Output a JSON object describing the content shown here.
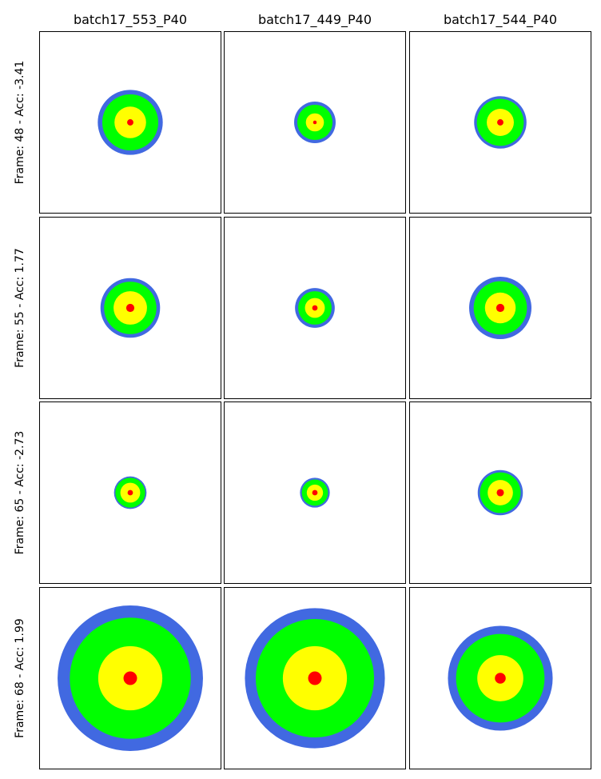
{
  "columns": [
    "batch17_553_P40",
    "batch17_449_P40",
    "batch17_544_P40"
  ],
  "rows": [
    {
      "label": "Frame: 48 - Acc: -3.41"
    },
    {
      "label": "Frame: 55 - Acc: 1.77"
    },
    {
      "label": "Frame: 65 - Acc: -2.73"
    },
    {
      "label": "Frame: 68 - Acc: 1.99"
    }
  ],
  "colors": {
    "outer": "#4169e1",
    "ring": "#00ff00",
    "inner": "#ffff00",
    "center": "#ff0000"
  },
  "targets": [
    [
      {
        "r_outer": 0.36,
        "r_ring": 0.31,
        "r_inner": 0.175,
        "r_center": 0.035
      },
      {
        "r_outer": 0.23,
        "r_ring": 0.195,
        "r_inner": 0.1,
        "r_center": 0.02
      },
      {
        "r_outer": 0.29,
        "r_ring": 0.26,
        "r_inner": 0.15,
        "r_center": 0.035
      }
    ],
    [
      {
        "r_outer": 0.33,
        "r_ring": 0.29,
        "r_inner": 0.185,
        "r_center": 0.045
      },
      {
        "r_outer": 0.22,
        "r_ring": 0.185,
        "r_inner": 0.11,
        "r_center": 0.03
      },
      {
        "r_outer": 0.345,
        "r_ring": 0.295,
        "r_inner": 0.17,
        "r_center": 0.045
      }
    ],
    [
      {
        "r_outer": 0.18,
        "r_ring": 0.165,
        "r_inner": 0.11,
        "r_center": 0.03
      },
      {
        "r_outer": 0.165,
        "r_ring": 0.145,
        "r_inner": 0.09,
        "r_center": 0.03
      },
      {
        "r_outer": 0.25,
        "r_ring": 0.225,
        "r_inner": 0.14,
        "r_center": 0.04
      }
    ],
    [
      {
        "r_outer": 0.805,
        "r_ring": 0.67,
        "r_inner": 0.355,
        "r_center": 0.075
      },
      {
        "r_outer": 0.775,
        "r_ring": 0.655,
        "r_inner": 0.355,
        "r_center": 0.075
      },
      {
        "r_outer": 0.58,
        "r_ring": 0.49,
        "r_inner": 0.255,
        "r_center": 0.06
      }
    ]
  ]
}
